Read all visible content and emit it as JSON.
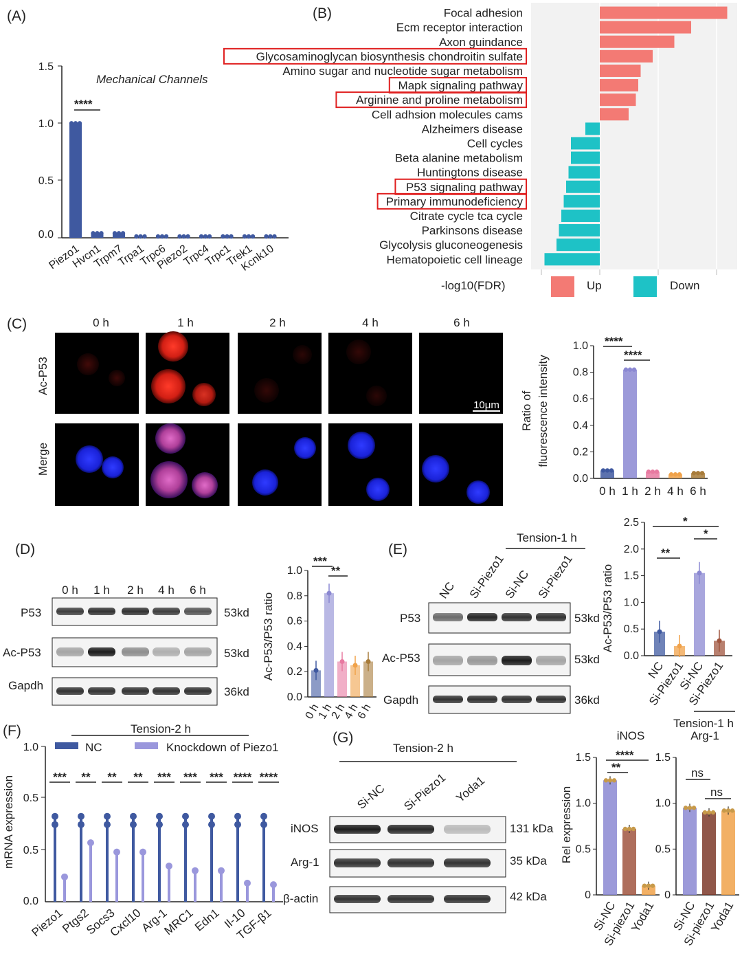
{
  "colors": {
    "nc": "#3f59a0",
    "kd": "#9a97dc",
    "up": "#f37a74",
    "down": "#1ec2c6",
    "sig": "#2c2f8a",
    "redbox": "#e02020"
  },
  "panel_labels": {
    "a": "(A)",
    "b": "(B)",
    "c": "(C)",
    "d": "(D)",
    "e": "(E)",
    "f": "(F)",
    "g": "(G)"
  },
  "panel_a": {
    "title": "Mechanical Channels",
    "yticks": [
      "1.5",
      "1.0",
      "0.5",
      "0.0"
    ],
    "sig": "****"
  },
  "panel_b": {
    "xlabel": "-log10(FDR)",
    "legend_up": "Up",
    "legend_down": "Down"
  },
  "panel_c": {
    "times": [
      "0 h",
      "1 h",
      "2 h",
      "4 h",
      "6 h"
    ],
    "rows": [
      "Ac-P53",
      "Merge"
    ],
    "scalebar": "10μm",
    "ylabel1": "Ratio of",
    "ylabel2": "fluorescence intensity",
    "yticks": [
      "1.0",
      "0.8",
      "0.6",
      "0.4",
      "0.2",
      "0.0"
    ],
    "xticks": [
      "0 h",
      "1 h",
      "2 h",
      "4 h",
      "6 h"
    ],
    "sig1": "****",
    "sig2": "****"
  },
  "panel_d": {
    "times": [
      "0 h",
      "1 h",
      "2 h",
      "4 h",
      "6 h"
    ],
    "bands": [
      "P53",
      "Ac-P53",
      "Gapdh"
    ],
    "kd": [
      "53kd",
      "53kd",
      "36kd"
    ],
    "ylabel": "Ac-P53/P53 ratio",
    "yticks": [
      "1.0",
      "0.8",
      "0.6",
      "0.4",
      "0.2",
      "0.0"
    ],
    "xticks": [
      "0 h",
      "1 h",
      "2 h",
      "4 h",
      "6 h"
    ],
    "sig1": "***",
    "sig2": "**"
  },
  "panel_e": {
    "tension": "Tension-1 h",
    "lanes": [
      "NC",
      "Si-Piezo1",
      "Si-NC",
      "Si-Piezo1"
    ],
    "bands": [
      "P53",
      "Ac-P53",
      "Gapdh"
    ],
    "kd": [
      "53kd",
      "53kd",
      "36kd"
    ],
    "ylabel": "Ac-P53/P53 ratio",
    "yticks": [
      "2.5",
      "2.0",
      "1.5",
      "1.0",
      "0.5",
      "0.0"
    ],
    "xticks": [
      "NC",
      "Si-Piezo1",
      "Si-NC",
      "Si-Piezo1"
    ],
    "group_label1": "Tension-1 h",
    "group_label2": "Arg-1",
    "sig1": "*",
    "sig2": "**",
    "sig3": "*"
  },
  "panel_f": {
    "tension": "Tension-2 h",
    "legend_nc": "NC",
    "legend_kd": "Knockdown of Piezo1",
    "ylabel": "mRNA expression",
    "yticks": [
      "1.0",
      "0.5",
      "0.5",
      "0.0"
    ],
    "sigs": [
      "***",
      "**",
      "**",
      "**",
      "***",
      "***",
      "***",
      "****",
      "****"
    ]
  },
  "panel_g": {
    "tension": "Tension-2 h",
    "lanes": [
      "Si-NC",
      "Si-Piezo1",
      "Yoda1"
    ],
    "bands": [
      "iNOS",
      "Arg-1",
      "β-actin"
    ],
    "kd": [
      "131 kDa",
      "35 kDa",
      "42 kDa"
    ],
    "chart_title": "iNOS",
    "ylabel": "Rel expression",
    "yticks_left": [
      "1.5",
      "1.0",
      "0.5",
      "0"
    ],
    "yticks_right": [
      "1.5",
      "1.0",
      "0.5",
      "0"
    ],
    "sig_l1": "****",
    "sig_l2": "**",
    "sig_r1": "ns",
    "sig_r2": "ns"
  },
  "chart_data": [
    {
      "id": "A",
      "type": "bar",
      "title": "Mechanical Channels",
      "categories": [
        "Piezo1",
        "Hvcn1",
        "Trpm7",
        "Trpa1",
        "Trpc6",
        "Piezo2",
        "Trpc4",
        "Trpc1",
        "Trek1",
        "Kcnk10"
      ],
      "values": [
        1.0,
        0.04,
        0.04,
        0.0,
        0.0,
        0.0,
        0.0,
        0.0,
        0.0,
        0.0
      ],
      "ylim": [
        0,
        1.5
      ],
      "yticks": [
        0,
        0.5,
        1.0,
        1.5
      ]
    },
    {
      "id": "B",
      "type": "bar",
      "orientation": "horizontal",
      "xlabel": "-log10(FDR)",
      "categories": [
        "Focal adhesion",
        "Ecm receptor interaction",
        "Axon guindance",
        "Glycosaminoglycan biosynthesis chondroitin sulfate",
        "Amino sugar and nucleotide sugar metabolism",
        "Mapk signaling pathway",
        "Arginine and proline metabolism",
        "Cell adhsion molecules cams",
        "Alzheimers disease",
        "Cell cycles",
        "Beta alanine metabolism",
        "Huntingtons disease",
        "P53 signaling pathway",
        "Primary immunodeficiency",
        "Citrate cycle tca cycle",
        "Parkinsons disease",
        "Glycolysis gluconeogenesis",
        "Hematopoietic cell lineage"
      ],
      "values": [
        5.3,
        3.8,
        3.1,
        2.2,
        1.7,
        1.6,
        1.5,
        1.2,
        -0.6,
        -1.2,
        -1.2,
        -1.3,
        -1.4,
        -1.5,
        -1.6,
        -1.7,
        -1.8,
        -2.3
      ],
      "highlighted": [
        false,
        false,
        false,
        true,
        false,
        true,
        true,
        false,
        false,
        false,
        false,
        false,
        true,
        true,
        false,
        false,
        false,
        false
      ],
      "legend": [
        "Up",
        "Down"
      ]
    },
    {
      "id": "C",
      "type": "bar",
      "ylabel": "Ratio of fluorescence intensity",
      "categories": [
        "0 h",
        "1 h",
        "2 h",
        "4 h",
        "6 h"
      ],
      "values": [
        0.06,
        0.82,
        0.05,
        0.03,
        0.04
      ],
      "ylim": [
        0,
        1.0
      ]
    },
    {
      "id": "D",
      "type": "bar",
      "ylabel": "Ac-P53/P53 ratio",
      "categories": [
        "0 h",
        "1 h",
        "2 h",
        "4 h",
        "6 h"
      ],
      "values": [
        0.21,
        0.82,
        0.28,
        0.25,
        0.28
      ],
      "ylim": [
        0,
        1.0
      ]
    },
    {
      "id": "E",
      "type": "bar",
      "ylabel": "Ac-P53/P53 ratio",
      "categories": [
        "NC",
        "Si-Piezo1",
        "Si-NC",
        "Si-Piezo1"
      ],
      "values": [
        0.45,
        0.18,
        1.55,
        0.28
      ],
      "ylim": [
        0,
        2.5
      ]
    },
    {
      "id": "F",
      "type": "lollipop",
      "ylabel": "mRNA expression",
      "categories": [
        "Piezo1",
        "Ptgs2",
        "Socs3",
        "Cxcl10",
        "Arg-1",
        "MRC1",
        "Edn1",
        "Il-10",
        "TGF-β1"
      ],
      "series": [
        {
          "name": "NC",
          "values": [
            0.55,
            0.55,
            0.55,
            0.55,
            0.55,
            0.55,
            0.55,
            0.55,
            0.55
          ]
        },
        {
          "name": "Knockdown of Piezo1",
          "values": [
            0.16,
            0.38,
            0.32,
            0.32,
            0.23,
            0.2,
            0.2,
            0.12,
            0.11
          ]
        }
      ],
      "ylim": [
        0,
        1.0
      ]
    },
    {
      "id": "G-left",
      "type": "bar",
      "title": "iNOS",
      "ylabel": "Rel expression",
      "categories": [
        "Si-NC",
        "Si-piezo1",
        "Yoda1"
      ],
      "values": [
        1.25,
        0.72,
        0.1
      ],
      "ylim": [
        0,
        1.5
      ]
    },
    {
      "id": "G-right",
      "type": "bar",
      "categories": [
        "Si-NC",
        "Si-piezo1",
        "Yoda1"
      ],
      "values": [
        0.95,
        0.9,
        0.92
      ],
      "ylim": [
        0,
        1.5
      ]
    }
  ]
}
